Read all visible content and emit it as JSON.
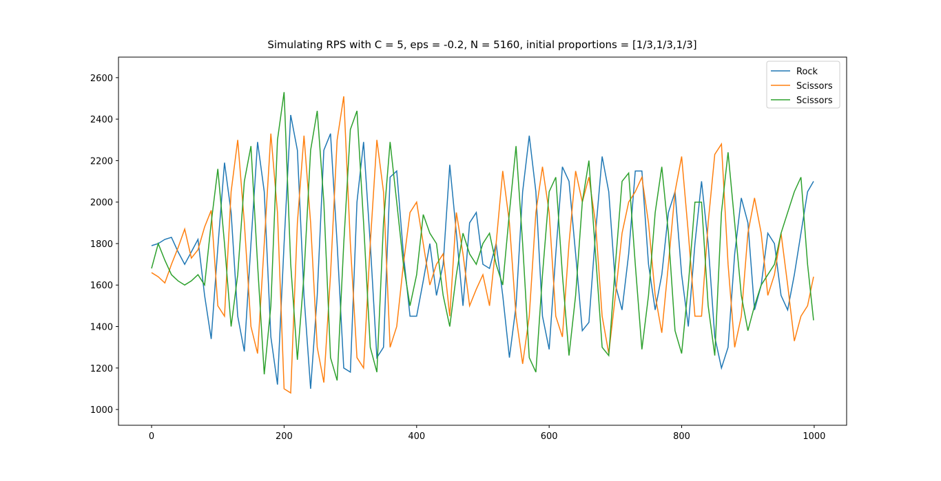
{
  "chart_data": {
    "type": "line",
    "title": "Simulating RPS with C = 5, eps = -0.2, N = 5160, initial proportions = [1/3,1/3,1/3]",
    "x": [
      0,
      10,
      20,
      30,
      40,
      50,
      60,
      70,
      80,
      90,
      100,
      110,
      120,
      130,
      140,
      150,
      160,
      170,
      180,
      190,
      200,
      210,
      220,
      230,
      240,
      250,
      260,
      270,
      280,
      290,
      300,
      310,
      320,
      330,
      340,
      350,
      360,
      370,
      380,
      390,
      400,
      410,
      420,
      430,
      440,
      450,
      460,
      470,
      480,
      490,
      500,
      510,
      520,
      530,
      540,
      550,
      560,
      570,
      580,
      590,
      600,
      610,
      620,
      630,
      640,
      650,
      660,
      670,
      680,
      690,
      700,
      710,
      720,
      730,
      740,
      750,
      760,
      770,
      780,
      790,
      800,
      810,
      820,
      830,
      840,
      850,
      860,
      870,
      880,
      890,
      900,
      910,
      920,
      930,
      940,
      950,
      960,
      970,
      980,
      990,
      999
    ],
    "series": [
      {
        "name": "Rock",
        "color": "#1f77b4",
        "values": [
          1790,
          1800,
          1820,
          1830,
          1760,
          1700,
          1760,
          1820,
          1550,
          1340,
          1780,
          2190,
          1950,
          1450,
          1280,
          1800,
          2290,
          2050,
          1350,
          1120,
          1800,
          2420,
          2250,
          1550,
          1100,
          1550,
          2250,
          2330,
          1800,
          1200,
          1180,
          2000,
          2290,
          1800,
          1250,
          1300,
          2120,
          2150,
          1750,
          1450,
          1450,
          1620,
          1800,
          1550,
          1700,
          2180,
          1850,
          1500,
          1900,
          1950,
          1700,
          1680,
          1800,
          1550,
          1250,
          1500,
          2050,
          2320,
          2050,
          1450,
          1290,
          1750,
          2170,
          2100,
          1750,
          1380,
          1420,
          1850,
          2220,
          2050,
          1600,
          1480,
          1750,
          2150,
          2150,
          1700,
          1480,
          1650,
          1950,
          2050,
          1650,
          1400,
          1800,
          2100,
          1800,
          1350,
          1200,
          1300,
          1750,
          2020,
          1900,
          1480,
          1600,
          1850,
          1800,
          1550,
          1480,
          1650,
          1850,
          2050,
          2100
        ]
      },
      {
        "name": "Scissors",
        "color": "#ff7f0e",
        "values": [
          1660,
          1640,
          1610,
          1700,
          1780,
          1870,
          1730,
          1770,
          1880,
          1960,
          1500,
          1450,
          2050,
          2300,
          1900,
          1400,
          1270,
          1800,
          2330,
          1950,
          1100,
          1080,
          1900,
          2320,
          1900,
          1300,
          1130,
          1650,
          2300,
          2510,
          1800,
          1250,
          1200,
          1800,
          2300,
          2050,
          1300,
          1400,
          1700,
          1950,
          2000,
          1800,
          1600,
          1700,
          1750,
          1450,
          1950,
          1750,
          1500,
          1580,
          1650,
          1500,
          1800,
          2150,
          1900,
          1450,
          1220,
          1450,
          1950,
          2170,
          1950,
          1450,
          1350,
          1800,
          2150,
          2000,
          2120,
          1900,
          1450,
          1270,
          1550,
          1850,
          2000,
          2050,
          2120,
          1900,
          1550,
          1370,
          1700,
          2050,
          2220,
          1850,
          1450,
          1450,
          1900,
          2230,
          2280,
          1700,
          1300,
          1450,
          1850,
          2020,
          1850,
          1550,
          1650,
          1850,
          1600,
          1330,
          1450,
          1500,
          1640
        ]
      },
      {
        "name": "Scissors",
        "color": "#2ca02c",
        "values": [
          1680,
          1800,
          1720,
          1650,
          1620,
          1600,
          1620,
          1650,
          1600,
          1900,
          2160,
          1800,
          1400,
          1650,
          2100,
          2270,
          1700,
          1170,
          1500,
          2300,
          2530,
          1700,
          1240,
          1650,
          2250,
          2440,
          2000,
          1250,
          1140,
          1800,
          2350,
          2440,
          1900,
          1300,
          1180,
          1900,
          2290,
          2000,
          1700,
          1500,
          1650,
          1940,
          1850,
          1800,
          1550,
          1400,
          1650,
          1850,
          1750,
          1700,
          1800,
          1850,
          1700,
          1600,
          1950,
          2270,
          1800,
          1250,
          1180,
          1650,
          2050,
          2120,
          1650,
          1260,
          1550,
          2000,
          2200,
          1750,
          1300,
          1260,
          1700,
          2100,
          2140,
          1700,
          1290,
          1550,
          1950,
          2170,
          1850,
          1380,
          1270,
          1600,
          2000,
          2000,
          1500,
          1260,
          1950,
          2240,
          1900,
          1550,
          1380,
          1500,
          1600,
          1650,
          1700,
          1850,
          1950,
          2050,
          2120,
          1700,
          1430
        ]
      }
    ],
    "xlim": [
      -49.95,
      1048.95
    ],
    "xticks": [
      0,
      200,
      400,
      600,
      800,
      1000
    ],
    "ylim": [
      924,
      2699
    ],
    "yticks": [
      1000,
      1200,
      1400,
      1600,
      1800,
      2000,
      2200,
      2400,
      2600
    ],
    "legend": "upper right"
  }
}
